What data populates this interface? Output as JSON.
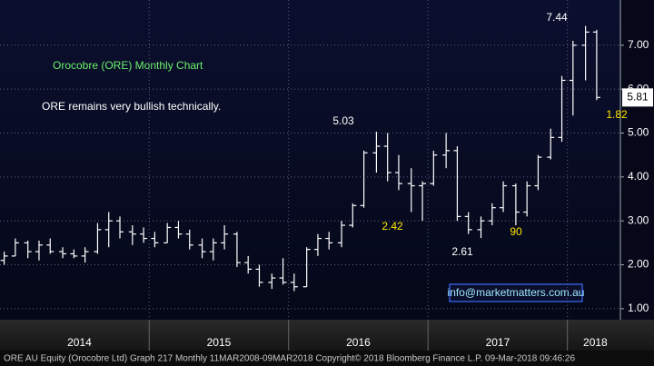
{
  "chart_data": {
    "type": "ohlc",
    "title": "Orocobre (ORE) Monthly Chart",
    "subtitle": "ORE remains very bullish technically.",
    "credit": "info@marketmatters.com.au",
    "footer": "ORE AU Equity (Orocobre Ltd) Graph 217  Monthly 11MAR2008-09MAR2018 Copyright© 2018 Bloomberg Finance L.P. 09-Mar-2018 09:46:26",
    "color": "#ffffff",
    "x": [
      2013.96,
      2014.04,
      2014.13,
      2014.21,
      2014.29,
      2014.38,
      2014.46,
      2014.54,
      2014.63,
      2014.71,
      2014.79,
      2014.88,
      2014.96,
      2015.04,
      2015.13,
      2015.21,
      2015.29,
      2015.38,
      2015.46,
      2015.54,
      2015.63,
      2015.71,
      2015.79,
      2015.88,
      2015.96,
      2016.04,
      2016.13,
      2016.21,
      2016.29,
      2016.38,
      2016.46,
      2016.54,
      2016.63,
      2016.71,
      2016.79,
      2016.88,
      2016.96,
      2017.04,
      2017.13,
      2017.21,
      2017.29,
      2017.38,
      2017.46,
      2017.54,
      2017.63,
      2017.71,
      2017.79,
      2017.88,
      2017.96,
      2018.04,
      2018.13,
      2018.21
    ],
    "open": [
      2.1,
      2.2,
      2.5,
      2.3,
      2.45,
      2.3,
      2.25,
      2.2,
      2.3,
      2.8,
      3.0,
      2.75,
      2.7,
      2.6,
      2.5,
      2.85,
      2.7,
      2.45,
      2.3,
      2.5,
      2.7,
      2.05,
      1.9,
      1.6,
      1.7,
      1.6,
      1.5,
      2.35,
      2.6,
      2.5,
      2.9,
      3.35,
      4.55,
      4.7,
      4.1,
      3.85,
      3.8,
      3.85,
      4.5,
      4.6,
      3.1,
      2.8,
      3.0,
      3.3,
      3.8,
      3.2,
      3.8,
      4.45,
      4.9,
      6.2,
      7.0,
      7.3
    ],
    "high": [
      2.3,
      2.6,
      2.55,
      2.55,
      2.6,
      2.4,
      2.35,
      2.4,
      2.95,
      3.2,
      3.1,
      2.9,
      2.85,
      2.75,
      2.95,
      3.0,
      2.8,
      2.6,
      2.6,
      2.9,
      2.75,
      2.2,
      2.0,
      1.8,
      2.15,
      1.8,
      2.4,
      2.7,
      2.75,
      3.0,
      3.4,
      4.6,
      5.03,
      5.0,
      4.5,
      4.2,
      3.9,
      4.6,
      5.0,
      4.7,
      3.2,
      3.1,
      3.4,
      3.9,
      3.85,
      3.9,
      4.5,
      5.1,
      6.3,
      7.1,
      7.44,
      7.35
    ],
    "low": [
      2.0,
      2.2,
      2.15,
      2.1,
      2.25,
      2.15,
      2.15,
      2.05,
      2.25,
      2.4,
      2.6,
      2.45,
      2.5,
      2.4,
      2.5,
      2.6,
      2.35,
      2.15,
      2.1,
      2.35,
      1.95,
      1.8,
      1.5,
      1.45,
      1.55,
      1.4,
      1.5,
      2.2,
      2.35,
      2.4,
      2.85,
      3.3,
      4.1,
      3.9,
      3.7,
      3.2,
      3.0,
      3.8,
      4.2,
      3.0,
      2.7,
      2.61,
      2.9,
      3.2,
      2.9,
      3.1,
      3.7,
      4.4,
      4.8,
      5.4,
      6.2,
      5.75
    ],
    "close": [
      2.2,
      2.5,
      2.3,
      2.45,
      2.3,
      2.25,
      2.2,
      2.3,
      2.8,
      3.0,
      2.75,
      2.7,
      2.6,
      2.5,
      2.85,
      2.7,
      2.45,
      2.3,
      2.5,
      2.7,
      2.05,
      1.9,
      1.6,
      1.7,
      1.6,
      1.5,
      2.35,
      2.6,
      2.5,
      2.9,
      3.35,
      4.55,
      4.7,
      4.1,
      3.85,
      3.8,
      3.85,
      4.5,
      4.6,
      3.1,
      2.8,
      3.0,
      3.3,
      3.8,
      3.2,
      3.8,
      4.45,
      4.9,
      6.2,
      7.0,
      7.3,
      5.81
    ],
    "last_price": 5.81,
    "xlim": [
      2013.93,
      2018.38
    ],
    "xticks": [
      {
        "value": 2014.5,
        "label": "2014"
      },
      {
        "value": 2015.5,
        "label": "2015"
      },
      {
        "value": 2016.5,
        "label": "2016"
      },
      {
        "value": 2017.5,
        "label": "2017"
      },
      {
        "value": 2018.2,
        "label": "2018"
      }
    ],
    "xgrid": [
      2015,
      2016,
      2017,
      2018
    ],
    "ylim": [
      0.75,
      8.03
    ],
    "yticks": [
      {
        "value": 1,
        "label": "1.00"
      },
      {
        "value": 2,
        "label": "2.00"
      },
      {
        "value": 3,
        "label": "3.00"
      },
      {
        "value": 4,
        "label": "4.00"
      },
      {
        "value": 5,
        "label": "5.00"
      },
      {
        "value": 6,
        "label": "6.00"
      },
      {
        "value": 7,
        "label": "7.00"
      }
    ],
    "grid": true,
    "annotations": [
      {
        "text": "5.03",
        "color": "#ffffff"
      },
      {
        "text": "2.42",
        "color": "#ffe600"
      },
      {
        "text": "2.61",
        "color": "#ffffff"
      },
      {
        "text": "90",
        "color": "#ffe600"
      },
      {
        "text": "7.44",
        "color": "#ffffff"
      },
      {
        "text": "1.82",
        "color": "#ffe600"
      }
    ]
  }
}
